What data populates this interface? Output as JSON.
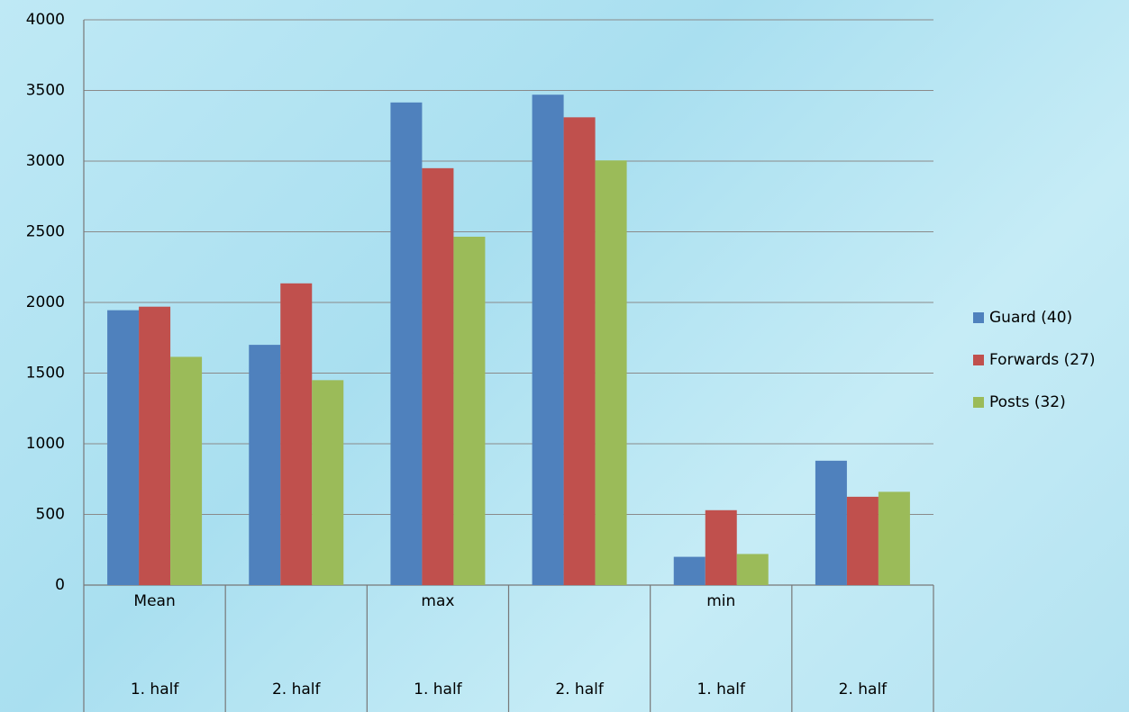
{
  "chart_data": {
    "type": "bar",
    "categories": [
      "1. half",
      "2. half",
      "1. half",
      "2. half",
      "1. half",
      "2. half"
    ],
    "category_groups": [
      "Mean",
      "max",
      "min"
    ],
    "series": [
      {
        "name": "Guard (40)",
        "color": "#4f81bd",
        "values": [
          1945,
          1700,
          3415,
          3470,
          200,
          880
        ]
      },
      {
        "name": "Forwards (27)",
        "color": "#c0504d",
        "values": [
          1970,
          2135,
          2950,
          3310,
          530,
          625
        ]
      },
      {
        "name": "Posts (32)",
        "color": "#9bbb59",
        "values": [
          1615,
          1450,
          2465,
          3005,
          220,
          660
        ]
      }
    ],
    "ylim": [
      0,
      4000
    ],
    "yticks": [
      0,
      500,
      1000,
      1500,
      2000,
      2500,
      3000,
      3500,
      4000
    ],
    "grid": true,
    "legend": "right"
  }
}
